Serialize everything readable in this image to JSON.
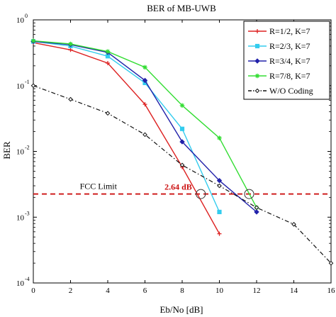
{
  "chart_data": {
    "type": "line",
    "title": "BER of MB-UWB",
    "xlabel": "Eb/No [dB]",
    "ylabel": "BER",
    "xlim": [
      0,
      16
    ],
    "ylim": [
      0.0001,
      1
    ],
    "yscale": "log",
    "grid": false,
    "x_ticks": [
      "0",
      "2",
      "4",
      "6",
      "8",
      "10",
      "12",
      "14",
      "16"
    ],
    "y_ticks": [
      {
        "base": "10",
        "exp": "0"
      },
      {
        "base": "10",
        "exp": "-1"
      },
      {
        "base": "10",
        "exp": "-2"
      },
      {
        "base": "10",
        "exp": "-3"
      },
      {
        "base": "10",
        "exp": "-4"
      }
    ],
    "legend_position": "top-right",
    "series": [
      {
        "name": "R=1/2, K=7",
        "color": "#dd2222",
        "marker": "plus",
        "dash": "solid",
        "x": [
          0,
          2,
          4,
          6,
          8,
          10
        ],
        "y": [
          0.45,
          0.35,
          0.22,
          0.052,
          0.0058,
          0.00056
        ]
      },
      {
        "name": "R=2/3, K=7",
        "color": "#33ccee",
        "marker": "square",
        "dash": "solid",
        "x": [
          0,
          2,
          4,
          6,
          8,
          10
        ],
        "y": [
          0.47,
          0.4,
          0.28,
          0.11,
          0.022,
          0.0012
        ]
      },
      {
        "name": "R=3/4, K=7",
        "color": "#2222aa",
        "marker": "diamond",
        "dash": "solid",
        "x": [
          0,
          2,
          4,
          6,
          8,
          10,
          12
        ],
        "y": [
          0.47,
          0.42,
          0.32,
          0.12,
          0.014,
          0.0036,
          0.0012
        ]
      },
      {
        "name": "R=7/8, K=7",
        "color": "#33dd33",
        "marker": "star",
        "dash": "solid",
        "x": [
          0,
          2,
          4,
          6,
          8,
          10,
          12
        ],
        "y": [
          0.48,
          0.43,
          0.33,
          0.19,
          0.05,
          0.016,
          0.0014
        ]
      },
      {
        "name": "W/O Coding",
        "color": "#111111",
        "marker": "diamond-open",
        "dash": "dashed",
        "x": [
          0,
          2,
          4,
          6,
          8,
          10,
          12,
          14,
          16
        ],
        "y": [
          0.1,
          0.062,
          0.038,
          0.018,
          0.0062,
          0.003,
          0.0014,
          0.00078,
          0.0002
        ]
      }
    ],
    "reference_line": {
      "label": "FCC Limit",
      "y": 0.00225,
      "color": "#cc1111"
    },
    "annotation": {
      "text": "2.64 dB",
      "color": "#cc1111"
    },
    "circled_points": [
      {
        "x": 9.0,
        "y": 0.00225
      },
      {
        "x": 11.6,
        "y": 0.00225
      }
    ]
  }
}
